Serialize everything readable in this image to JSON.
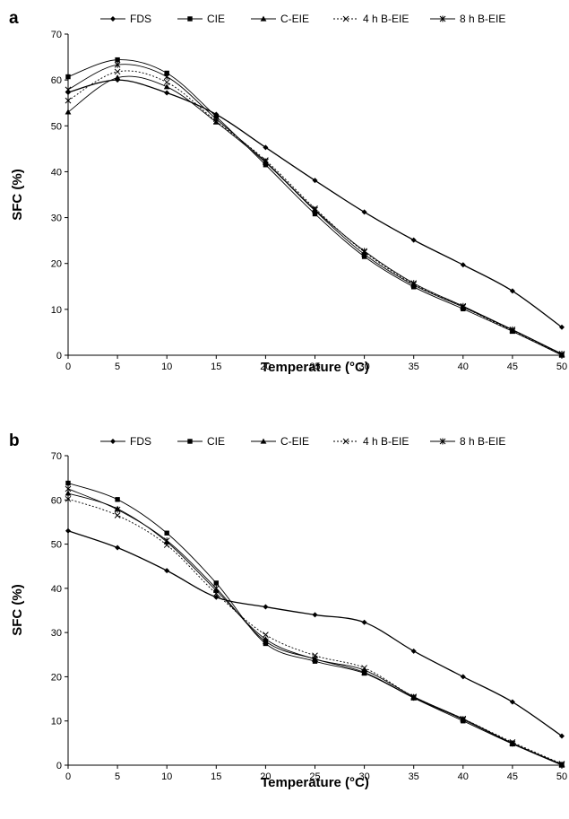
{
  "chart_data": [
    {
      "type": "line",
      "panel_label": "a",
      "xlabel": "Temperature (°C)",
      "ylabel": "SFC (%)",
      "xlim": [
        0,
        50
      ],
      "ylim": [
        0,
        70
      ],
      "x_ticks": [
        0,
        5,
        10,
        15,
        20,
        25,
        30,
        35,
        40,
        45,
        50
      ],
      "y_ticks": [
        0,
        10,
        20,
        30,
        40,
        50,
        60,
        70
      ],
      "legend_position": "top",
      "x": [
        0,
        5,
        10,
        15,
        20,
        25,
        30,
        35,
        40,
        45,
        50
      ],
      "series": [
        {
          "name": "FDS",
          "marker": "diamond",
          "dash": "solid",
          "values": [
            57.3,
            60.0,
            57.2,
            52.5,
            45.3,
            38.1,
            31.2,
            25.1,
            19.7,
            14.0,
            6.1
          ]
        },
        {
          "name": "CIE",
          "marker": "square",
          "dash": "solid",
          "values": [
            60.7,
            64.4,
            61.5,
            52.0,
            41.5,
            30.8,
            21.5,
            14.9,
            10.1,
            5.2,
            0.0
          ]
        },
        {
          "name": "C-EIE",
          "marker": "triangle",
          "dash": "solid",
          "values": [
            53.0,
            60.5,
            58.5,
            50.8,
            42.0,
            31.5,
            22.0,
            15.3,
            10.5,
            5.5,
            0.2
          ]
        },
        {
          "name": "4 h B-EIE",
          "marker": "x",
          "dash": "dotted",
          "values": [
            55.5,
            61.8,
            59.5,
            51.0,
            42.5,
            32.0,
            22.5,
            15.5,
            10.5,
            5.3,
            0.1
          ]
        },
        {
          "name": "8 h B-EIE",
          "marker": "star",
          "dash": "solid",
          "values": [
            57.9,
            63.3,
            60.7,
            51.5,
            42.2,
            31.7,
            22.7,
            15.7,
            10.7,
            5.6,
            0.3
          ]
        }
      ]
    },
    {
      "type": "line",
      "panel_label": "b",
      "xlabel": "Temperature (°C)",
      "ylabel": "SFC (%)",
      "xlim": [
        0,
        50
      ],
      "ylim": [
        0,
        70
      ],
      "x_ticks": [
        0,
        5,
        10,
        15,
        20,
        25,
        30,
        35,
        40,
        45,
        50
      ],
      "y_ticks": [
        0,
        10,
        20,
        30,
        40,
        50,
        60,
        70
      ],
      "legend_position": "top",
      "x": [
        0,
        5,
        10,
        15,
        20,
        25,
        30,
        35,
        40,
        45,
        50
      ],
      "series": [
        {
          "name": "FDS",
          "marker": "diamond",
          "dash": "solid",
          "values": [
            53.0,
            49.2,
            44.0,
            38.0,
            35.8,
            34.0,
            32.3,
            25.8,
            20.0,
            14.3,
            6.6
          ]
        },
        {
          "name": "CIE",
          "marker": "square",
          "dash": "solid",
          "values": [
            63.8,
            60.1,
            52.5,
            41.2,
            27.5,
            23.5,
            20.8,
            15.2,
            10.0,
            4.8,
            0.0
          ]
        },
        {
          "name": "C-EIE",
          "marker": "triangle",
          "dash": "solid",
          "values": [
            61.5,
            58.0,
            50.5,
            39.5,
            28.5,
            24.0,
            21.5,
            15.5,
            10.5,
            5.0,
            0.2
          ]
        },
        {
          "name": "4 h B-EIE",
          "marker": "x",
          "dash": "dotted",
          "values": [
            60.2,
            56.5,
            49.8,
            38.8,
            29.5,
            24.8,
            22.0,
            15.5,
            10.5,
            5.2,
            0.3
          ]
        },
        {
          "name": "8 h B-EIE",
          "marker": "star",
          "dash": "solid",
          "values": [
            62.5,
            57.8,
            50.8,
            40.0,
            28.0,
            24.0,
            21.0,
            15.3,
            10.3,
            4.9,
            0.1
          ]
        }
      ]
    }
  ]
}
